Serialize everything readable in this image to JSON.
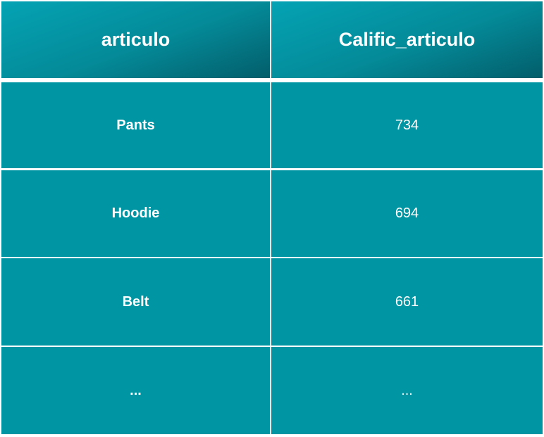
{
  "table": {
    "headers": [
      "articulo",
      "Calific_articulo"
    ],
    "rows": [
      [
        "Pants",
        "734"
      ],
      [
        "Hoodie",
        "694"
      ],
      [
        "Belt",
        "661"
      ],
      [
        "...",
        "..."
      ]
    ]
  },
  "colors": {
    "header_start": "#04a3b4",
    "header_end": "#035d6a",
    "cell_bg": "#0095a3",
    "text": "#ffffff",
    "grid": "#ffffff"
  }
}
